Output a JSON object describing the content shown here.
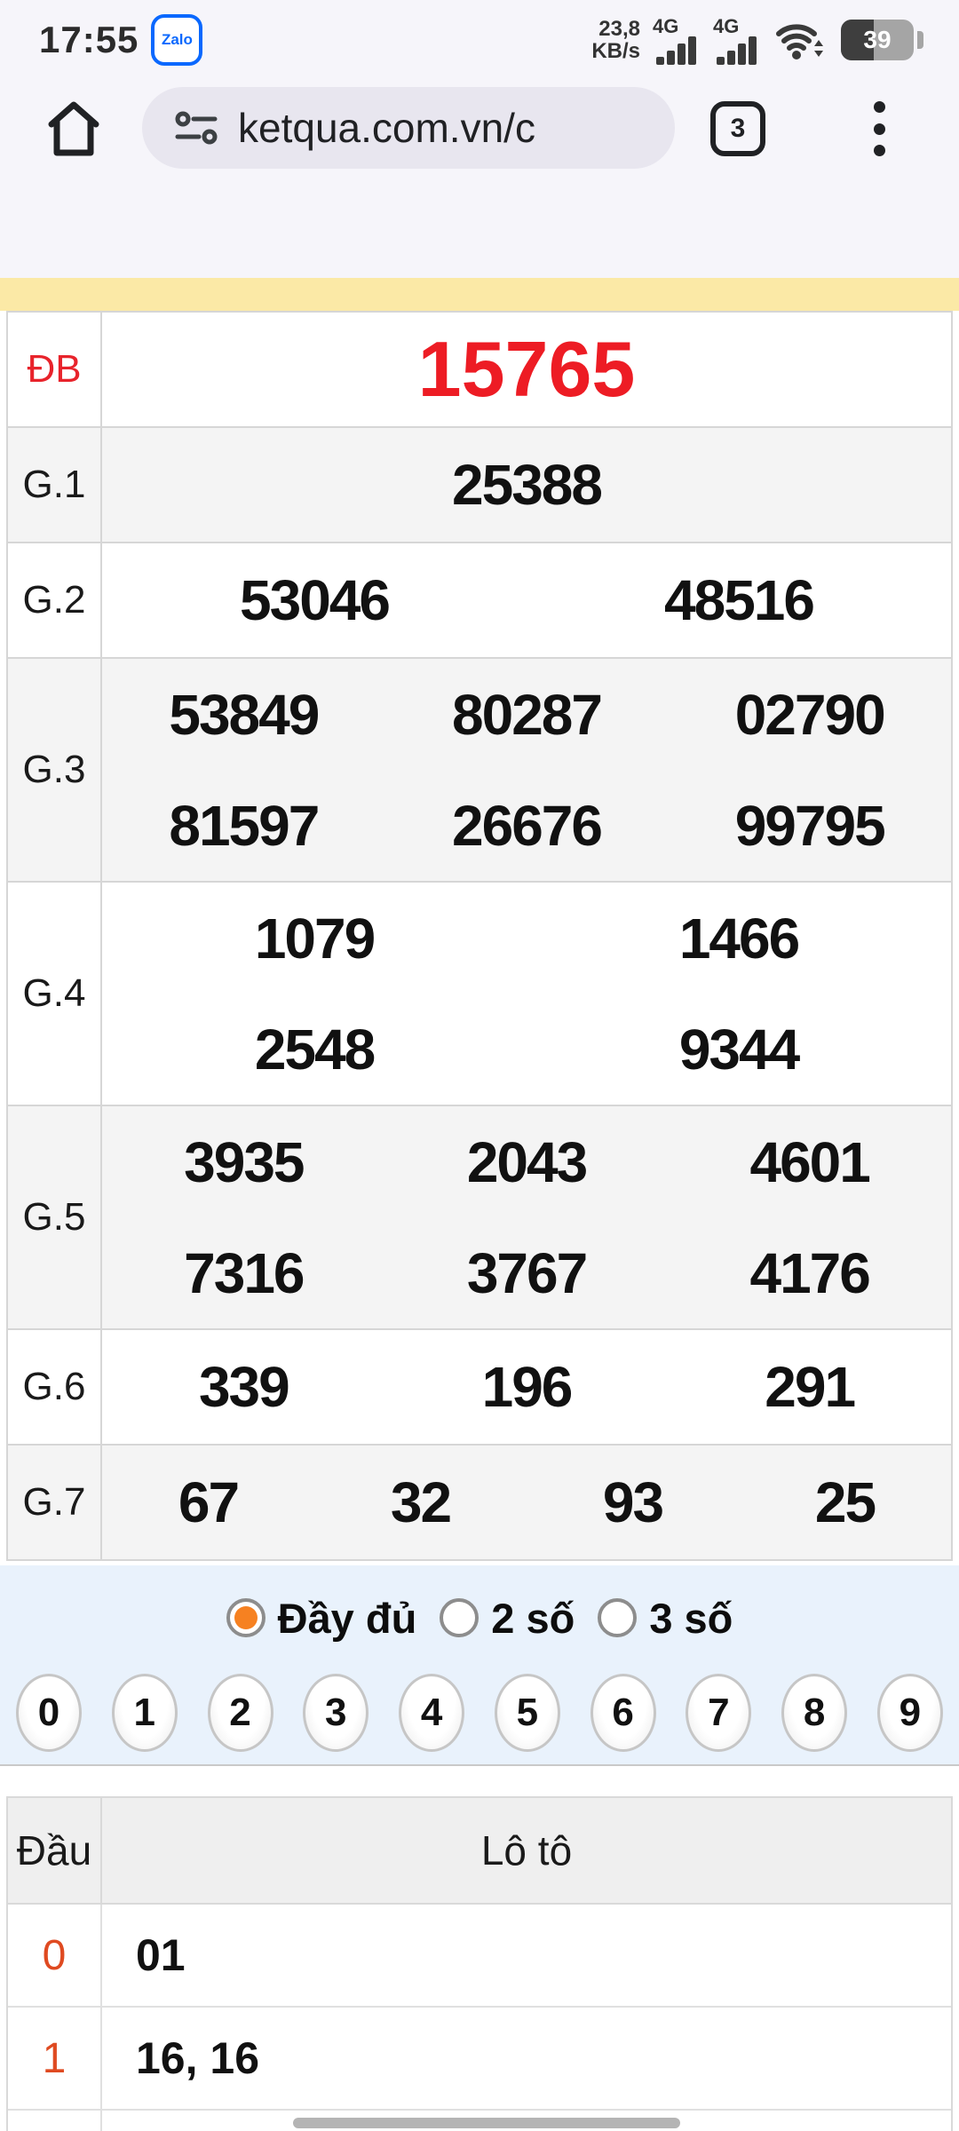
{
  "status_bar": {
    "time": "17:55",
    "zalo_label": "Zalo",
    "net_speed_value": "23,8",
    "net_speed_unit": "KB/s",
    "sim1_net": "4G",
    "sim2_net": "4G",
    "battery_percent": "39"
  },
  "browser": {
    "url": "ketqua.com.vn/c",
    "tab_count": "3"
  },
  "results_table": {
    "rows": [
      {
        "label": "ĐB",
        "highlight": true,
        "lines": [
          [
            "15765"
          ]
        ]
      },
      {
        "label": "G.1",
        "highlight": false,
        "lines": [
          [
            "25388"
          ]
        ]
      },
      {
        "label": "G.2",
        "highlight": false,
        "lines": [
          [
            "53046",
            "48516"
          ]
        ]
      },
      {
        "label": "G.3",
        "highlight": false,
        "lines": [
          [
            "53849",
            "80287",
            "02790"
          ],
          [
            "81597",
            "26676",
            "99795"
          ]
        ]
      },
      {
        "label": "G.4",
        "highlight": false,
        "lines": [
          [
            "1079",
            "1466"
          ],
          [
            "2548",
            "9344"
          ]
        ]
      },
      {
        "label": "G.5",
        "highlight": false,
        "lines": [
          [
            "3935",
            "2043",
            "4601"
          ],
          [
            "7316",
            "3767",
            "4176"
          ]
        ]
      },
      {
        "label": "G.6",
        "highlight": false,
        "lines": [
          [
            "339",
            "196",
            "291"
          ]
        ]
      },
      {
        "label": "G.7",
        "highlight": false,
        "lines": [
          [
            "67",
            "32",
            "93",
            "25"
          ]
        ]
      }
    ]
  },
  "filter": {
    "options": [
      {
        "label": "Đầy đủ",
        "selected": true
      },
      {
        "label": "2 số",
        "selected": false
      },
      {
        "label": "3 số",
        "selected": false
      }
    ],
    "digits": [
      "0",
      "1",
      "2",
      "3",
      "4",
      "5",
      "6",
      "7",
      "8",
      "9"
    ]
  },
  "loto_table": {
    "col1": "Đầu",
    "col2": "Lô tô",
    "rows": [
      {
        "dau": "0",
        "loto": "01"
      },
      {
        "dau": "1",
        "loto": "16, 16"
      }
    ]
  },
  "icons": {
    "status": [
      "zalo-icon",
      "signal-bars-icon",
      "signal-bars-icon",
      "wifi-icon",
      "battery-icon"
    ],
    "toolbar": [
      "home-icon",
      "site-settings-icon",
      "tab-switcher-icon",
      "kebab-menu-icon"
    ]
  },
  "colors": {
    "chrome_bg": "#f6f5fa",
    "url_pill": "#e8e6ef",
    "marquee_yellow": "#fbe9a6",
    "stripe_gray": "#f4f4f4",
    "special_red": "#ed1c24",
    "filter_blue": "#e9f2fc",
    "radio_orange": "#f68121",
    "loto_digit_red": "#df4a21"
  }
}
